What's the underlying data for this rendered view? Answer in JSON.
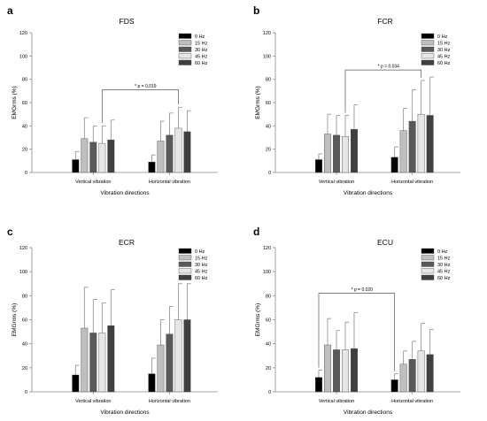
{
  "figure": {
    "ylabel": "EMGrms (%)",
    "xlabel": "Vibration directions",
    "categories": [
      "Vertical vibration",
      "Horizontal vibration"
    ],
    "legend": [
      "0 Hz",
      "15 Hz",
      "30 Hz",
      "45 Hz",
      "60 Hz"
    ],
    "colors": {
      "0 Hz": "#000000",
      "15 Hz": "#bfbfbf",
      "30 Hz": "#595959",
      "45 Hz": "#e6e6e6",
      "60 Hz": "#3f3f3f",
      "errorbar": "#8a8a8a",
      "axis": "#8a8a8a"
    }
  },
  "chart_data": [
    {
      "type": "bar",
      "panel": "a",
      "title": "FDS",
      "xlabel": "Vibration directions",
      "ylabel": "EMGrms (%)",
      "categories": [
        "Vertical vibration",
        "Horizontal vibration"
      ],
      "ylim": [
        0,
        120
      ],
      "yticks": [
        0,
        20,
        40,
        60,
        80,
        100,
        120
      ],
      "legend_position": "top-right",
      "series": [
        {
          "name": "0 Hz",
          "values": [
            11,
            9
          ],
          "errors": [
            7,
            6
          ]
        },
        {
          "name": "15 Hz",
          "values": [
            29,
            27
          ],
          "errors": [
            18,
            17
          ]
        },
        {
          "name": "30 Hz",
          "values": [
            26,
            32
          ],
          "errors": [
            14,
            19
          ]
        },
        {
          "name": "45 Hz",
          "values": [
            25,
            38
          ],
          "errors": [
            15,
            18
          ]
        },
        {
          "name": "60 Hz",
          "values": [
            28,
            35
          ],
          "errors": [
            17,
            18
          ]
        }
      ],
      "annotation": {
        "text": "* p = 0.019",
        "from_series": "45 Hz",
        "from_category": 0,
        "to_series": "45 Hz",
        "to_category": 1,
        "y": 71
      }
    },
    {
      "type": "bar",
      "panel": "b",
      "title": "FCR",
      "xlabel": "Vibration directions",
      "ylabel": "EMGrms (%)",
      "categories": [
        "Vertical vibration",
        "Horizontal vibration"
      ],
      "ylim": [
        0,
        120
      ],
      "yticks": [
        0,
        20,
        40,
        60,
        80,
        100,
        120
      ],
      "legend_position": "top-right",
      "series": [
        {
          "name": "0 Hz",
          "values": [
            11,
            13
          ],
          "errors": [
            5,
            9
          ]
        },
        {
          "name": "15 Hz",
          "values": [
            33,
            36
          ],
          "errors": [
            17,
            19
          ]
        },
        {
          "name": "30 Hz",
          "values": [
            32,
            44
          ],
          "errors": [
            17,
            27
          ]
        },
        {
          "name": "45 Hz",
          "values": [
            31,
            50
          ],
          "errors": [
            18,
            29
          ]
        },
        {
          "name": "60 Hz",
          "values": [
            37,
            49
          ],
          "errors": [
            21,
            33
          ]
        }
      ],
      "annotation": {
        "text": "* p = 0.034",
        "from_series": "45 Hz",
        "from_category": 0,
        "to_series": "45 Hz",
        "to_category": 1,
        "y": 88
      }
    },
    {
      "type": "bar",
      "panel": "c",
      "title": "ECR",
      "xlabel": "Vibration directions",
      "ylabel": "EMGrms (%)",
      "categories": [
        "Vertical vibration",
        "Horizontal vibration"
      ],
      "ylim": [
        0,
        120
      ],
      "yticks": [
        0,
        20,
        40,
        60,
        80,
        100,
        120
      ],
      "legend_position": "top-right",
      "series": [
        {
          "name": "0 Hz",
          "values": [
            14,
            15
          ],
          "errors": [
            8,
            13
          ]
        },
        {
          "name": "15 Hz",
          "values": [
            53,
            39
          ],
          "errors": [
            34,
            21
          ]
        },
        {
          "name": "30 Hz",
          "values": [
            49,
            48
          ],
          "errors": [
            28,
            23
          ]
        },
        {
          "name": "45 Hz",
          "values": [
            49,
            60
          ],
          "errors": [
            25,
            30
          ]
        },
        {
          "name": "60 Hz",
          "values": [
            55,
            60
          ],
          "errors": [
            30,
            30
          ]
        }
      ]
    },
    {
      "type": "bar",
      "panel": "d",
      "title": "ECU",
      "xlabel": "Vibration directions",
      "ylabel": "EMGrms (%)",
      "categories": [
        "Vertical vibration",
        "Horizontal vibration"
      ],
      "ylim": [
        0,
        120
      ],
      "yticks": [
        0,
        20,
        40,
        60,
        80,
        100,
        120
      ],
      "legend_position": "top-right",
      "series": [
        {
          "name": "0 Hz",
          "values": [
            12,
            10
          ],
          "errors": [
            6,
            5
          ]
        },
        {
          "name": "15 Hz",
          "values": [
            39,
            23
          ],
          "errors": [
            22,
            11
          ]
        },
        {
          "name": "30 Hz",
          "values": [
            35,
            27
          ],
          "errors": [
            16,
            15
          ]
        },
        {
          "name": "45 Hz",
          "values": [
            35,
            34
          ],
          "errors": [
            23,
            23
          ]
        },
        {
          "name": "60 Hz",
          "values": [
            36,
            31
          ],
          "errors": [
            30,
            21
          ]
        }
      ],
      "annotation": {
        "text": "* p = 0.020",
        "from_series": "0 Hz",
        "from_category": 0,
        "to_series": "0 Hz",
        "to_category": 1,
        "y": 82
      }
    }
  ]
}
